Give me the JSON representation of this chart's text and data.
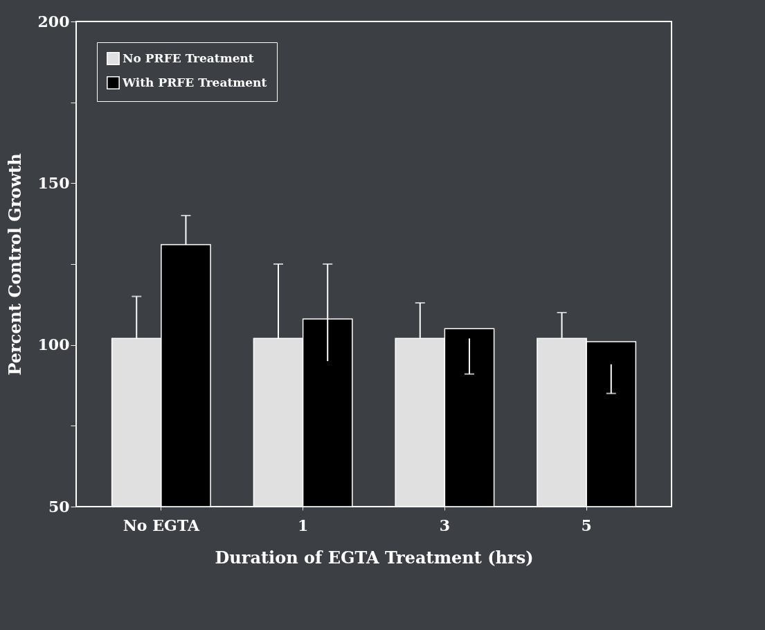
{
  "chart_data": {
    "type": "bar",
    "xlabel": "Duration of EGTA Treatment (hrs)",
    "ylabel": "Percent Control Growth",
    "categories": [
      "No EGTA",
      "1",
      "3",
      "5"
    ],
    "series": [
      {
        "name": "No PRFE Treatment",
        "color": "#e0e0e0",
        "values": [
          102,
          102,
          102,
          102
        ],
        "errors": [
          [
            102,
            115
          ],
          [
            102,
            125
          ],
          [
            102,
            113
          ],
          [
            102,
            110
          ]
        ]
      },
      {
        "name": "With PRFE Treatment",
        "color": "#000000",
        "values": [
          131,
          108,
          105,
          101
        ],
        "errors": [
          [
            131,
            140
          ],
          [
            95,
            125
          ],
          [
            91,
            102
          ],
          [
            85,
            94
          ]
        ]
      }
    ],
    "ylim": [
      50,
      200
    ],
    "yticks": [
      50,
      {
        "value": 75,
        "label": null
      },
      100,
      {
        "value": 125,
        "label": null
      },
      150,
      {
        "value": 175,
        "label": null
      },
      200
    ],
    "grid": false,
    "legend": "top left"
  }
}
